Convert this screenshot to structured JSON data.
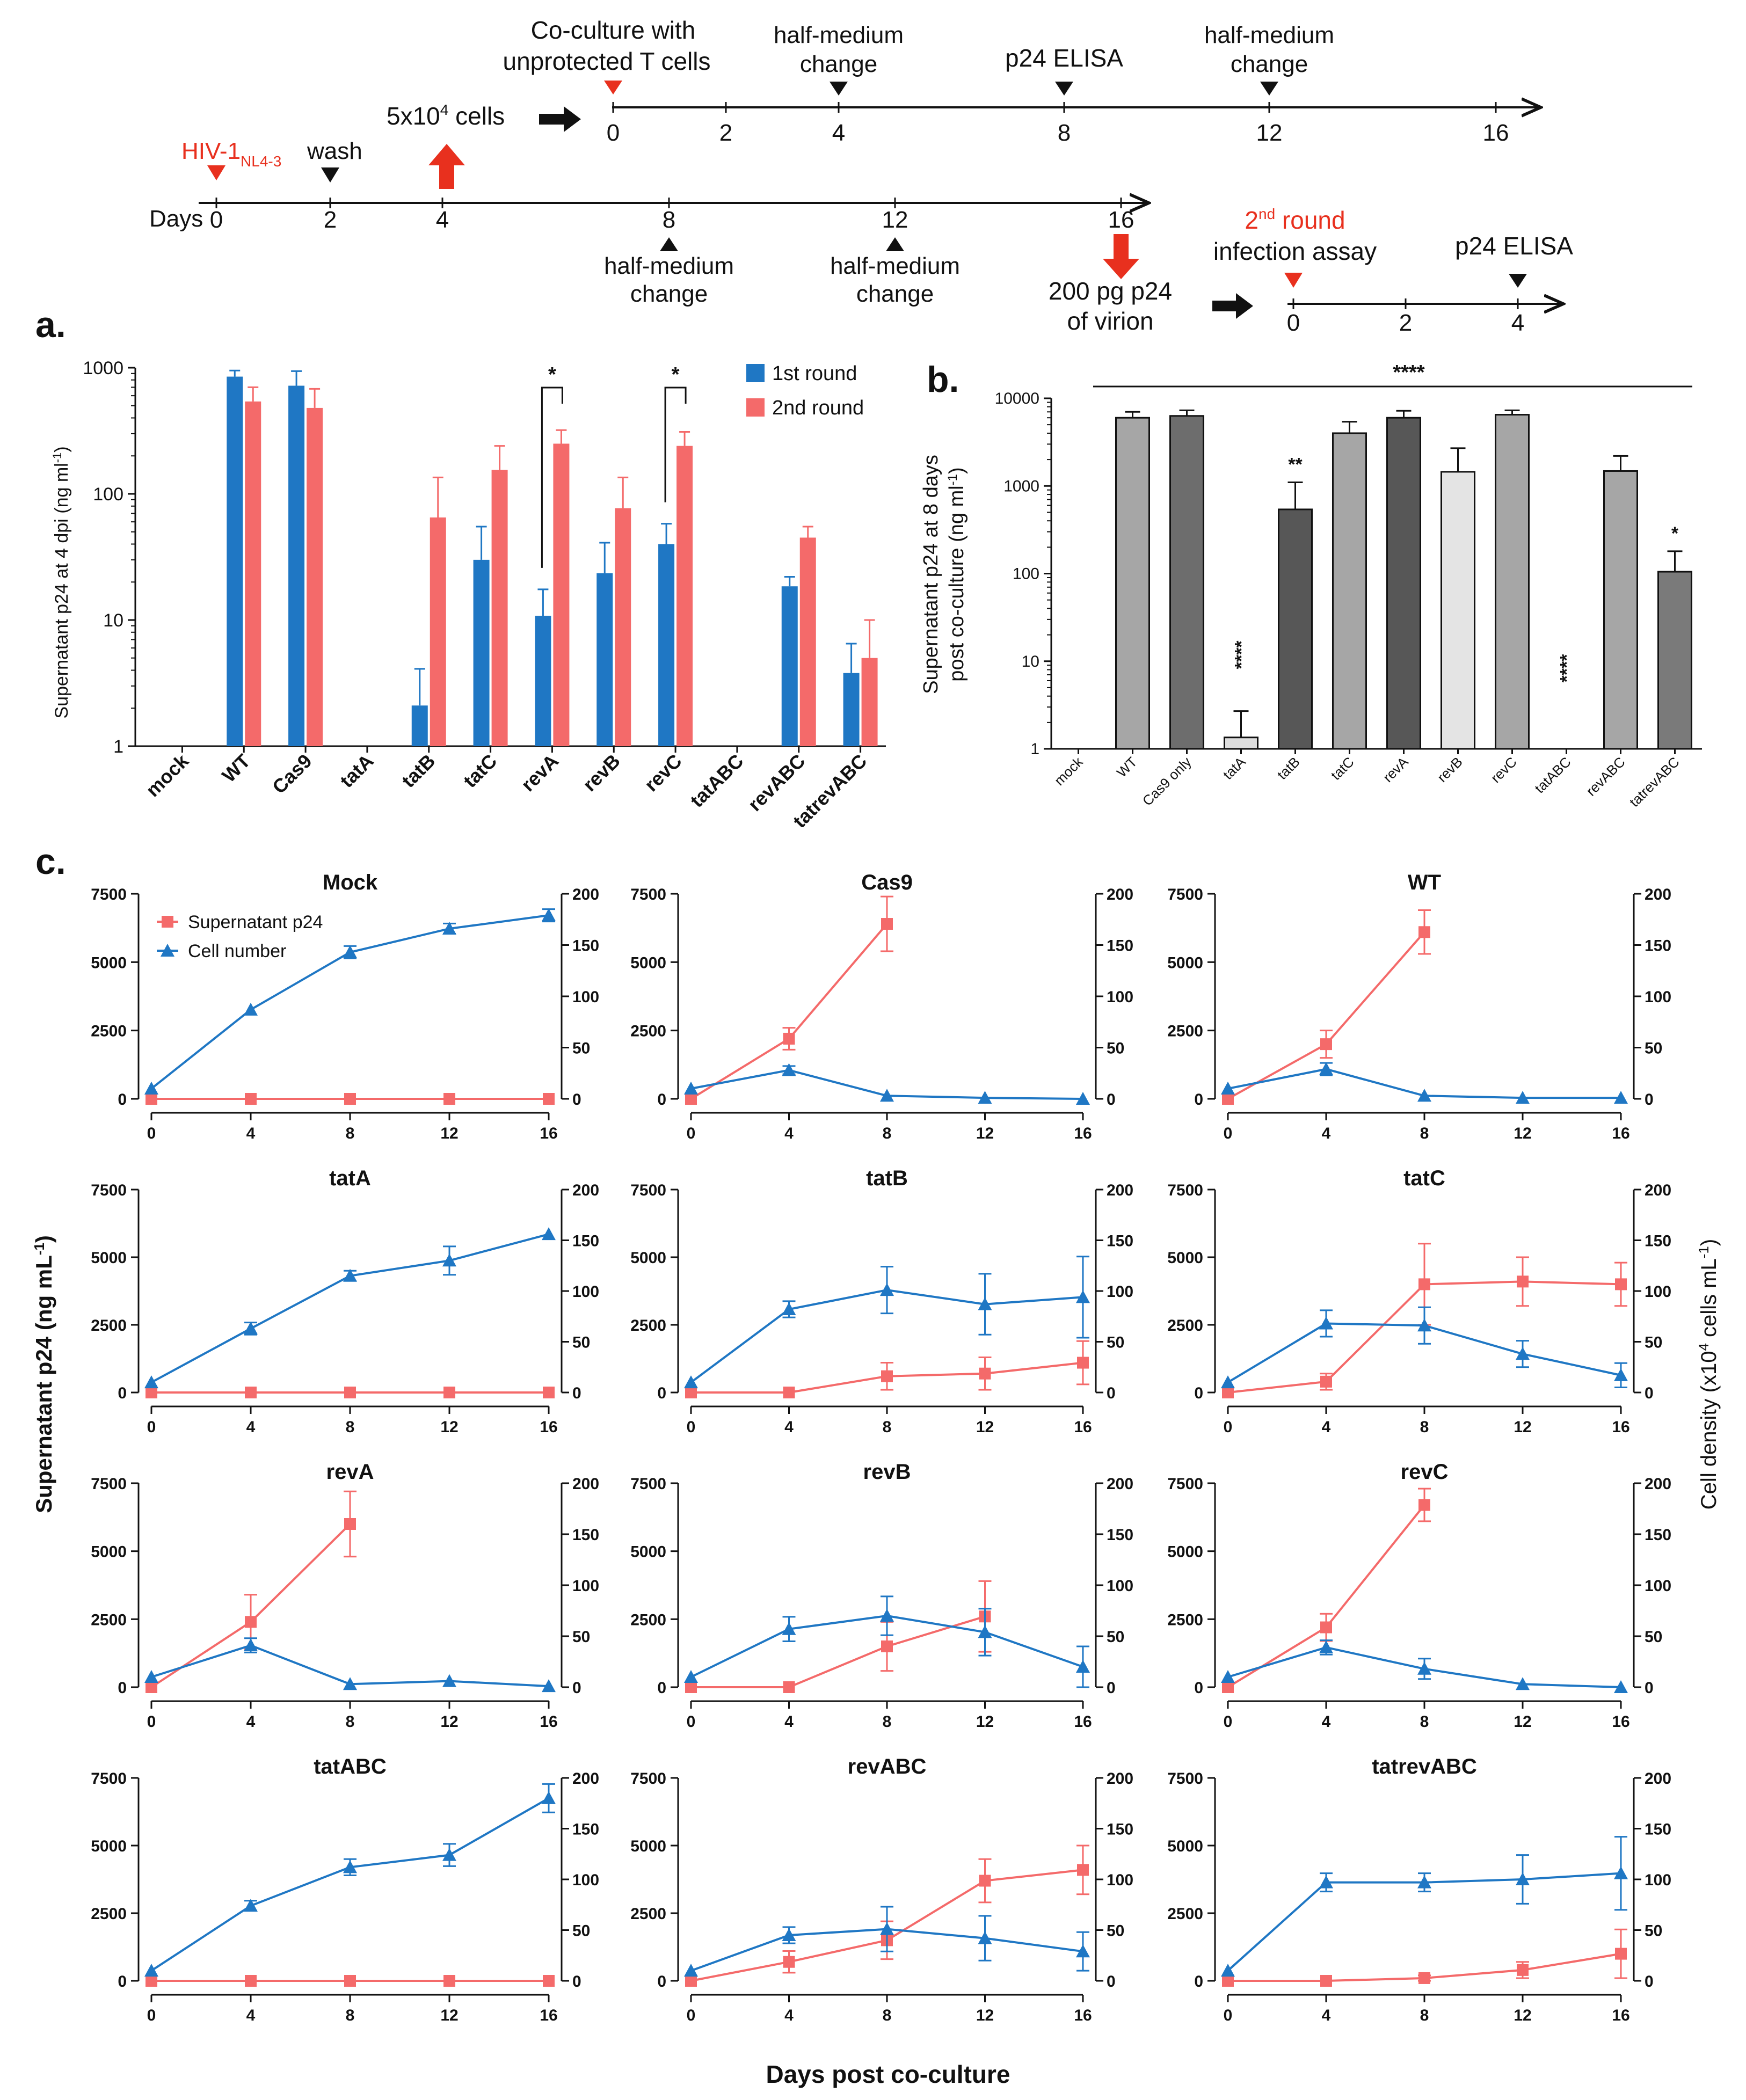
{
  "colors": {
    "blue": "#1f77c4",
    "red": "#f46a6a",
    "black": "#111111",
    "mock_red": "#e8301e"
  },
  "timeline": {
    "days_label": "Days",
    "bottom_ticks": [
      "0",
      "2",
      "4",
      "8",
      "12",
      "16"
    ],
    "virus_main": "HIV-1",
    "virus_sub": "NL4-3",
    "wash": "wash",
    "cells": "5x10",
    "cells_sup": "4",
    "cells_suffix": " cells",
    "bottom_hm1a": "half-medium",
    "bottom_hm1b": "change",
    "bottom_hm2a": "half-medium",
    "bottom_hm2b": "change",
    "virion_a": "200 pg p24",
    "virion_b": "of virion",
    "top_ticks": [
      "0",
      "2",
      "4",
      "8",
      "12",
      "16"
    ],
    "coculture_a": "Co-culture with",
    "coculture_b": "unprotected T cells",
    "top_hm1a": "half-medium",
    "top_hm1b": "change",
    "top_elisa": "p24 ELISA",
    "top_hm2a": "half-medium",
    "top_hm2b": "change",
    "round2_sup": "nd",
    "round2_a_suffix": " round",
    "round2_num": "2",
    "round2_b": "infection assay",
    "round2_elisa": "p24 ELISA",
    "round2_ticks": [
      "0",
      "2",
      "4"
    ]
  },
  "panel_labels": {
    "a": "a.",
    "b": "b.",
    "c": "c."
  },
  "chart_data": [
    {
      "id": "a",
      "type": "bar",
      "ylabel": "Supernatant p24 at 4 dpi (ng ml",
      "ylabel_sup": "-1",
      "ylabel_end": ")",
      "yscale": "log",
      "ylim": [
        1,
        1000
      ],
      "yticks": [
        "1",
        "10",
        "100",
        "1000"
      ],
      "categories": [
        "mock",
        "WT",
        "Cas9",
        "tatA",
        "tatB",
        "tatC",
        "revA",
        "revB",
        "revC",
        "tatABC",
        "revABC",
        "tatrevABC"
      ],
      "series": [
        {
          "name": "1st round",
          "values": [
            null,
            850,
            720,
            null,
            2.1,
            30,
            10.8,
            23.5,
            40,
            null,
            18.5,
            3.8
          ],
          "errors": [
            null,
            950,
            940,
            null,
            4.1,
            55,
            17.5,
            41,
            58,
            null,
            22,
            6.5
          ]
        },
        {
          "name": "2nd round",
          "values": [
            null,
            540,
            480,
            null,
            65,
            155,
            250,
            77,
            240,
            null,
            45,
            5.0
          ],
          "errors": [
            null,
            700,
            680,
            null,
            135,
            240,
            320,
            135,
            310,
            null,
            55,
            10
          ]
        }
      ],
      "sig": [
        {
          "a": "revA",
          "label": "*"
        },
        {
          "a": "revC",
          "label": "*"
        }
      ]
    },
    {
      "id": "b",
      "type": "bar",
      "ylabel_line1": "Supernatant p24 at 8 days",
      "ylabel_line2": "post co-culture (ng ml",
      "ylabel_sup": "-1",
      "ylabel_end": ")",
      "yscale": "log",
      "ylim": [
        1,
        10000
      ],
      "yticks": [
        "1",
        "10",
        "100",
        "1000",
        "10000"
      ],
      "categories": [
        "mock",
        "WT",
        "Cas9 only",
        "tatA",
        "tatB",
        "tatC",
        "revA",
        "revB",
        "revC",
        "tatABC",
        "revABC",
        "tatrevABC"
      ],
      "values": [
        null,
        6000,
        6300,
        1.35,
        540,
        4000,
        6000,
        1450,
        6500,
        null,
        1480,
        105
      ],
      "errors": [
        null,
        7000,
        7300,
        2.7,
        1100,
        5400,
        7200,
        2700,
        7300,
        null,
        2200,
        180
      ],
      "fills": [
        null,
        "#a6a6a6",
        "#6d6d6d",
        "#dedede",
        "#575757",
        "#a6a6a6",
        "#575757",
        "#e4e4e4",
        "#a6a6a6",
        null,
        "#a6a6a6",
        "#7a7a7a"
      ],
      "stars": [
        null,
        "",
        "",
        "****",
        "**",
        "",
        "",
        "",
        "",
        "****",
        "",
        "*"
      ],
      "overall_sig": "****"
    },
    {
      "id": "c",
      "type": "line",
      "x": [
        0,
        4,
        8,
        12,
        16
      ],
      "xticks": [
        "0",
        "4",
        "8",
        "12",
        "16"
      ],
      "xlabel": "Days post co-culture",
      "ylabel_left": "Supernatant p24 (ng mL",
      "ylabel_left_sup": "-1",
      "ylabel_left_end": ")",
      "ylabel_right": "Cell density (x10",
      "ylabel_right_sup": "4",
      "ylabel_right_end": " cells mL",
      "ylabel_right_sup2": "-1",
      "ylabel_right_end2": ")",
      "ylim_left": [
        0,
        7500
      ],
      "ylim_right": [
        0,
        200
      ],
      "yticks_left": [
        "0",
        "2500",
        "5000",
        "7500"
      ],
      "yticks_right": [
        "0",
        "50",
        "100",
        "150",
        "200"
      ],
      "legend": [
        "Supernatant p24",
        "Cell number"
      ],
      "panels": [
        {
          "title": "Mock",
          "p24": [
            0,
            0,
            0,
            0,
            0
          ],
          "p24_err": [
            0,
            0,
            0,
            0,
            0
          ],
          "cells": [
            10,
            87,
            143,
            166,
            179
          ],
          "cells_err": [
            0,
            0,
            6,
            5,
            6
          ]
        },
        {
          "title": "Cas9",
          "p24": [
            0,
            2200,
            6400,
            null,
            null
          ],
          "p24_err": [
            0,
            400,
            1000,
            0,
            0
          ],
          "cells": [
            10,
            28,
            3,
            1,
            0
          ],
          "cells_err": [
            0,
            4,
            0,
            0,
            0
          ]
        },
        {
          "title": "WT",
          "p24": [
            0,
            2000,
            6100,
            null,
            null
          ],
          "p24_err": [
            0,
            500,
            800,
            0,
            0
          ],
          "cells": [
            10,
            29,
            3,
            1,
            1
          ],
          "cells_err": [
            0,
            6,
            0,
            0,
            0
          ]
        },
        {
          "title": "tatA",
          "p24": [
            0,
            0,
            0,
            0,
            0
          ],
          "p24_err": [
            0,
            0,
            0,
            0,
            0
          ],
          "cells": [
            10,
            63,
            115,
            130,
            156
          ],
          "cells_err": [
            0,
            6,
            5,
            14,
            0
          ]
        },
        {
          "title": "tatB",
          "p24": [
            0,
            0,
            600,
            700,
            1100
          ],
          "p24_err": [
            0,
            0,
            500,
            600,
            800
          ],
          "cells": [
            10,
            82,
            101,
            87,
            94
          ],
          "cells_err": [
            0,
            8,
            23,
            30,
            40
          ]
        },
        {
          "title": "tatC",
          "p24": [
            0,
            400,
            4000,
            4100,
            4000
          ],
          "p24_err": [
            0,
            300,
            1500,
            900,
            800
          ],
          "cells": [
            10,
            68,
            66,
            38,
            17
          ],
          "cells_err": [
            0,
            13,
            18,
            13,
            12
          ]
        },
        {
          "title": "revA",
          "p24": [
            0,
            2400,
            6000,
            null,
            null
          ],
          "p24_err": [
            0,
            1000,
            1200,
            0,
            0
          ],
          "cells": [
            10,
            41,
            3,
            6,
            1
          ],
          "cells_err": [
            0,
            7,
            0,
            0,
            0
          ]
        },
        {
          "title": "revB",
          "p24": [
            0,
            0,
            1500,
            2600,
            null
          ],
          "p24_err": [
            0,
            0,
            900,
            1300,
            0
          ],
          "cells": [
            10,
            57,
            70,
            54,
            20
          ],
          "cells_err": [
            0,
            12,
            19,
            23,
            20
          ]
        },
        {
          "title": "revC",
          "p24": [
            0,
            2200,
            6700,
            null,
            null
          ],
          "p24_err": [
            0,
            500,
            600,
            0,
            0
          ],
          "cells": [
            10,
            39,
            18,
            3,
            0
          ],
          "cells_err": [
            0,
            7,
            10,
            0,
            0
          ]
        },
        {
          "title": "tatABC",
          "p24": [
            0,
            0,
            0,
            0,
            0
          ],
          "p24_err": [
            0,
            0,
            0,
            0,
            0
          ],
          "cells": [
            10,
            74,
            112,
            124,
            180
          ],
          "cells_err": [
            0,
            5,
            8,
            11,
            14
          ]
        },
        {
          "title": "revABC",
          "p24": [
            0,
            700,
            1500,
            3700,
            4100
          ],
          "p24_err": [
            0,
            400,
            700,
            800,
            900
          ],
          "cells": [
            10,
            45,
            51,
            42,
            29
          ],
          "cells_err": [
            0,
            8,
            22,
            22,
            19
          ]
        },
        {
          "title": "tatrevABC",
          "p24": [
            0,
            0,
            100,
            400,
            1000
          ],
          "p24_err": [
            0,
            0,
            100,
            300,
            900
          ],
          "cells": [
            10,
            97,
            97,
            100,
            106
          ],
          "cells_err": [
            0,
            9,
            9,
            24,
            36
          ]
        }
      ]
    }
  ]
}
